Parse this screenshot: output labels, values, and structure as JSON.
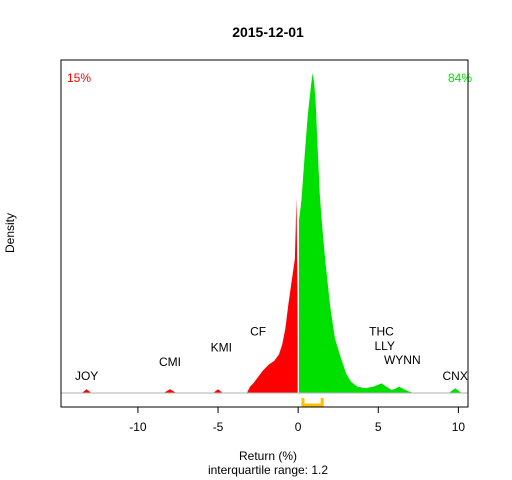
{
  "chart_data": {
    "type": "area",
    "title": "2015-12-01",
    "xlabel": "Return (%)",
    "xlabel2": "interquartile range: 1.2",
    "ylabel": "Density",
    "xlim": [
      -14.8,
      10.6
    ],
    "ylim": [
      0,
      1
    ],
    "x_ticks": [
      -10,
      -5,
      0,
      5,
      10
    ],
    "x_tick_labels": [
      "-10",
      "-5",
      "0",
      "5",
      "10"
    ],
    "negative_share": "15%",
    "positive_share": "84%",
    "negative_color": "#ff0000",
    "positive_color": "#00e000",
    "iqr_color": "#ffc000",
    "iqr": [
      0.3,
      1.5
    ],
    "series": [
      {
        "x": [
          -13.5,
          -13.2,
          -12.9,
          -8.4,
          -8.0,
          -7.6,
          -5.3,
          -5.0,
          -4.7,
          -3.2,
          -3.0,
          -2.8,
          -2.5,
          -2.2,
          -2.0,
          -1.8,
          -1.5,
          -1.2,
          -1.0,
          -0.8,
          -0.6,
          -0.4,
          -0.2,
          -0.1,
          0.0,
          0.05,
          0.2,
          0.4,
          0.6,
          0.8,
          0.9,
          1.0,
          1.1,
          1.2,
          1.35,
          1.5,
          1.7,
          2.0,
          2.3,
          2.6,
          3.0,
          3.3,
          3.7,
          4.2,
          4.7,
          5.2,
          5.5,
          5.8,
          6.0,
          6.3,
          6.6,
          6.9,
          7.2,
          9.4,
          9.8,
          10.2
        ],
        "y": [
          0.0,
          0.012,
          0.0,
          0.0,
          0.012,
          0.0,
          0.0,
          0.012,
          0.0,
          0.0,
          0.02,
          0.03,
          0.05,
          0.07,
          0.08,
          0.09,
          0.1,
          0.12,
          0.15,
          0.2,
          0.28,
          0.35,
          0.42,
          0.61,
          0.12,
          0.54,
          0.6,
          0.74,
          0.87,
          0.96,
          1.0,
          0.97,
          0.9,
          0.78,
          0.62,
          0.52,
          0.41,
          0.27,
          0.17,
          0.12,
          0.06,
          0.035,
          0.02,
          0.015,
          0.02,
          0.03,
          0.02,
          0.01,
          0.012,
          0.02,
          0.012,
          0.005,
          0.0,
          0.0,
          0.015,
          0.0
        ]
      }
    ],
    "annotations": [
      {
        "text": "JOY",
        "x": -13.2,
        "y": 0.04
      },
      {
        "text": "CMI",
        "x": -8.0,
        "y": 0.085
      },
      {
        "text": "KMI",
        "x": -4.8,
        "y": 0.13
      },
      {
        "text": "CF",
        "x": -2.5,
        "y": 0.18
      },
      {
        "text": "THC",
        "x": 5.2,
        "y": 0.18
      },
      {
        "text": "LLY",
        "x": 5.4,
        "y": 0.135
      },
      {
        "text": "WYNN",
        "x": 6.5,
        "y": 0.09
      },
      {
        "text": "CNX",
        "x": 9.8,
        "y": 0.04
      }
    ]
  }
}
